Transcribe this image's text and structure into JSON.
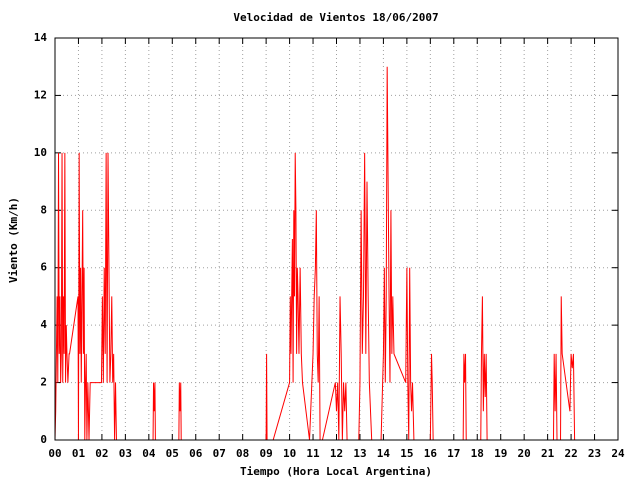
{
  "chart_data": {
    "type": "line",
    "title": "Velocidad de Vientos 18/06/2007",
    "xlabel": "Tiempo (Hora Local Argentina)",
    "ylabel": "Viento (Km/h)",
    "grid": true,
    "xlim": [
      0,
      24
    ],
    "ylim": [
      0,
      14
    ],
    "yticks": [
      0,
      2,
      4,
      6,
      8,
      10,
      12,
      14
    ],
    "xticks": [
      {
        "value": 0,
        "label": "00"
      },
      {
        "value": 1,
        "label": "01"
      },
      {
        "value": 2,
        "label": "02"
      },
      {
        "value": 3,
        "label": "03"
      },
      {
        "value": 4,
        "label": "04"
      },
      {
        "value": 5,
        "label": "05"
      },
      {
        "value": 6,
        "label": "06"
      },
      {
        "value": 7,
        "label": "07"
      },
      {
        "value": 8,
        "label": "08"
      },
      {
        "value": 9,
        "label": "09"
      },
      {
        "value": 10,
        "label": "10"
      },
      {
        "value": 11,
        "label": "11"
      },
      {
        "value": 12,
        "label": "12"
      },
      {
        "value": 13,
        "label": "13"
      },
      {
        "value": 14,
        "label": "14"
      },
      {
        "value": 15,
        "label": "15"
      },
      {
        "value": 16,
        "label": "16"
      },
      {
        "value": 17,
        "label": "17"
      },
      {
        "value": 18,
        "label": "18"
      },
      {
        "value": 19,
        "label": "19"
      },
      {
        "value": 20,
        "label": "20"
      },
      {
        "value": 21,
        "label": "21"
      },
      {
        "value": 22,
        "label": "22"
      },
      {
        "value": 23,
        "label": "23"
      },
      {
        "value": 24,
        "label": "24"
      }
    ],
    "x": [
      0,
      0.03,
      0.06,
      0.09,
      0.12,
      0.15,
      0.18,
      0.21,
      0.24,
      0.27,
      0.3,
      0.33,
      0.36,
      0.39,
      0.42,
      0.45,
      0.48,
      0.51,
      0.55,
      0.6,
      0.62,
      0.98,
      1.0,
      1.03,
      1.06,
      1.09,
      1.12,
      1.15,
      1.18,
      1.21,
      1.24,
      1.27,
      1.3,
      1.33,
      1.36,
      1.4,
      1.45,
      1.5,
      1.55,
      1.6,
      1.98,
      2.02,
      2.06,
      2.1,
      2.14,
      2.18,
      2.22,
      2.26,
      2.3,
      2.34,
      2.38,
      2.42,
      2.46,
      2.5,
      2.54,
      2.58,
      2.62,
      4.18,
      4.2,
      4.23,
      4.26,
      4.28,
      5.28,
      5.3,
      5.33,
      5.36,
      5.38,
      9.0,
      9.02,
      9.04,
      9.3,
      10.0,
      10.03,
      10.06,
      10.09,
      10.12,
      10.15,
      10.18,
      10.21,
      10.24,
      10.27,
      10.3,
      10.33,
      10.36,
      10.4,
      10.45,
      10.5,
      10.55,
      10.85,
      11.0,
      11.05,
      11.1,
      11.14,
      11.18,
      11.22,
      11.26,
      11.3,
      11.4,
      11.95,
      12.0,
      12.05,
      12.1,
      12.15,
      12.2,
      12.25,
      12.3,
      12.35,
      12.4,
      12.45,
      12.95,
      13.0,
      13.05,
      13.1,
      13.15,
      13.2,
      13.25,
      13.3,
      13.35,
      13.4,
      13.5,
      13.9,
      14.0,
      14.04,
      14.08,
      14.12,
      14.16,
      14.2,
      14.24,
      14.28,
      14.32,
      14.36,
      14.4,
      14.45,
      14.95,
      15.0,
      15.04,
      15.08,
      15.12,
      15.16,
      15.2,
      15.24,
      15.3,
      16.0,
      16.05,
      16.08,
      16.12,
      17.4,
      17.43,
      17.46,
      17.5,
      17.53,
      18.15,
      18.18,
      18.22,
      18.26,
      18.3,
      18.34,
      18.38,
      18.42,
      21.25,
      21.28,
      21.32,
      21.36,
      21.4,
      21.55,
      21.58,
      21.62,
      21.95,
      22.0,
      22.05,
      22.1,
      22.15
    ],
    "series": [
      {
        "color": "#ff0000",
        "values": [
          0,
          1,
          3,
          5,
          2,
          10,
          3,
          5,
          2,
          3,
          10,
          2,
          5,
          3,
          10,
          2,
          4,
          3,
          2,
          3,
          3,
          5,
          0,
          10,
          3,
          6,
          2,
          5,
          8,
          3,
          6,
          0,
          2,
          3,
          0,
          2,
          0,
          2,
          2,
          2,
          2,
          5,
          2,
          6,
          3,
          10,
          2,
          10,
          6,
          2,
          3,
          5,
          2,
          3,
          0,
          2,
          0,
          0,
          2,
          1,
          2,
          0,
          0,
          2,
          1,
          2,
          0,
          0,
          3,
          0,
          0,
          2,
          5,
          3,
          5,
          7,
          2,
          8,
          5,
          10,
          8,
          3,
          6,
          5,
          3,
          6,
          3,
          2,
          0,
          3,
          5,
          6,
          8,
          3,
          2,
          5,
          0,
          0,
          2,
          1,
          2,
          0,
          5,
          3,
          0,
          2,
          1,
          2,
          0,
          0,
          2,
          8,
          3,
          5,
          10,
          3,
          9,
          5,
          2,
          0,
          0,
          3,
          6,
          2,
          5,
          13,
          9,
          5,
          2,
          8,
          3,
          5,
          3,
          2,
          6,
          2,
          0,
          6,
          2,
          1,
          2,
          0,
          0,
          3,
          2,
          0,
          0,
          3,
          2,
          3,
          0,
          0,
          3,
          5,
          1,
          3,
          1.5,
          3,
          0,
          0,
          3,
          1,
          3,
          0,
          0,
          5,
          3,
          1,
          3,
          2.5,
          3,
          0
        ]
      }
    ]
  }
}
